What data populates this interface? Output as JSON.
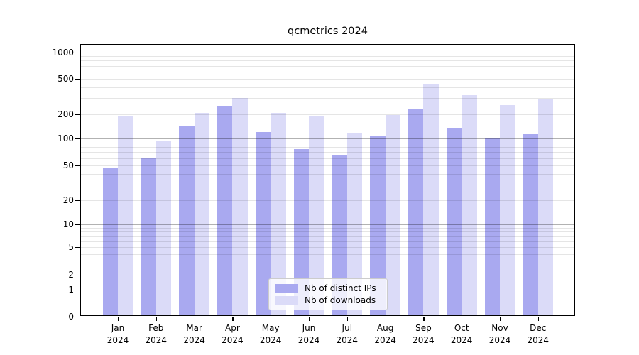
{
  "title": "qcmetrics 2024",
  "legend": {
    "items": [
      {
        "label": "Nb of distinct IPs",
        "color": "#a9a9f0"
      },
      {
        "label": "Nb of downloads",
        "color": "#dbdbf8"
      }
    ]
  },
  "colors": {
    "bar_distinct_ips": "#a9a9f0",
    "bar_downloads": "#dbdbf8",
    "grid_major": "#b3b3b3",
    "grid_minor": "#e6e6e6",
    "axis": "#000000",
    "background": "#ffffff"
  },
  "chart_data": {
    "type": "bar",
    "title": "qcmetrics 2024",
    "categories": [
      "Jan 2024",
      "Feb 2024",
      "Mar 2024",
      "Apr 2024",
      "May 2024",
      "Jun 2024",
      "Jul 2024",
      "Aug 2024",
      "Sep 2024",
      "Oct 2024",
      "Nov 2024",
      "Dec 2024"
    ],
    "series": [
      {
        "name": "Nb of distinct IPs",
        "color": "#a9a9f0",
        "values": [
          46,
          60,
          143,
          245,
          120,
          76,
          66,
          107,
          229,
          135,
          102,
          112
        ]
      },
      {
        "name": "Nb of downloads",
        "color": "#dbdbf8",
        "values": [
          185,
          93,
          205,
          300,
          205,
          192,
          117,
          196,
          440,
          328,
          250,
          295
        ]
      }
    ],
    "xlabel": "",
    "ylabel": "",
    "yscale": "symlog",
    "yticks": [
      0,
      1,
      2,
      5,
      10,
      20,
      50,
      100,
      200,
      500,
      1000
    ],
    "ylim": [
      0,
      1300
    ],
    "grid": "both",
    "grid_major_at": [
      1,
      10,
      100,
      1000
    ],
    "legend_position": "lower center inside"
  }
}
